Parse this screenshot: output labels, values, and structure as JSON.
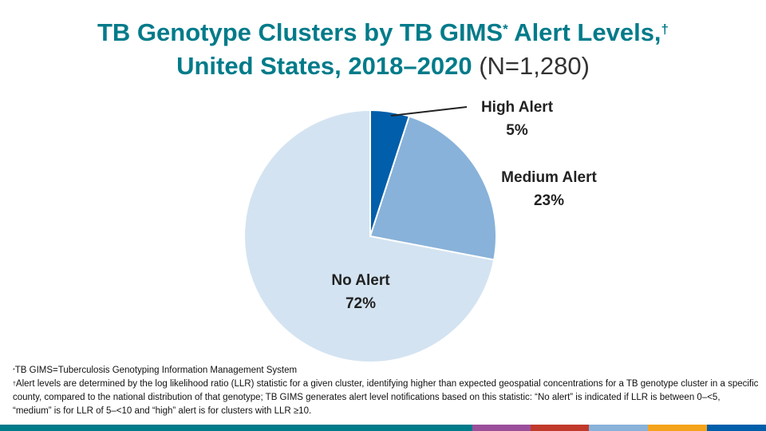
{
  "chart_data": {
    "type": "pie",
    "title_line1": "TB Genotype Clusters by TB GIMS",
    "title_mark1": "*",
    "title_line1_end": " Alert Levels,",
    "title_mark2": "†",
    "title_line2": "United States, 2018–2020",
    "title_n": "(N=1,280)",
    "slices": [
      {
        "label": "High Alert",
        "value": 5,
        "value_label": "5%",
        "color": "#005EAA"
      },
      {
        "label": "Medium Alert",
        "value": 23,
        "value_label": "23%",
        "color": "#88B2D9"
      },
      {
        "label": "No Alert",
        "value": 72,
        "value_label": "72%",
        "color": "#D3E3F1"
      }
    ]
  },
  "footnotes": {
    "f1_mark": "*",
    "f1": "TB GIMS=Tuberculosis Genotyping Information Management System",
    "f2_mark": "†",
    "f2": "Alert levels are determined by the log likelihood ratio (LLR) statistic for a given cluster, identifying higher than expected geospatial concentrations for a TB genotype cluster in a specific county, compared to the national distribution of that genotype; TB GIMS generates alert level notifications based on this statistic: “No alert” is indicated if LLR  is between 0–<5, “medium” is for LLR of 5–<10  and “high” alert is for clusters with LLR ≥10."
  },
  "footer_colors": [
    "#007B8A",
    "#9B4F9B",
    "#C0392B",
    "#88B2D9",
    "#F5A31A",
    "#005EAA"
  ]
}
